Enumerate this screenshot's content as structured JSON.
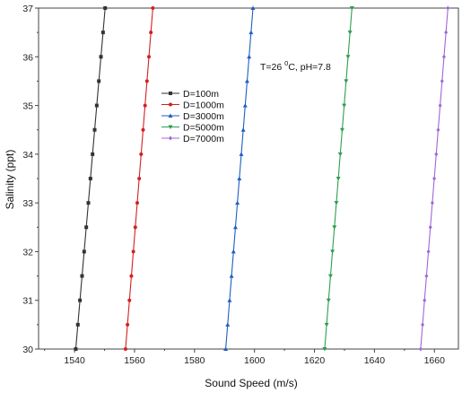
{
  "chart_data": {
    "type": "line",
    "title": "",
    "xlabel": "Sound Speed (m/s)",
    "ylabel": "Salinity (ppt)",
    "xlim": [
      1528,
      1668
    ],
    "ylim": [
      30,
      37
    ],
    "xticks": [
      "1540",
      "1560",
      "1580",
      "1600",
      "1620",
      "1640",
      "1660"
    ],
    "yticks": [
      "30",
      "31",
      "32",
      "33",
      "34",
      "35",
      "36",
      "37"
    ],
    "annotation": {
      "prefix": "T=26 ",
      "superscript": "0",
      "suffix": "C, pH=7.8"
    },
    "legend_position": "upper-left-center",
    "grid": false,
    "series": [
      {
        "name": "D=100m",
        "color": "#333333",
        "marker": "square",
        "points": [
          [
            1540.4,
            30.0
          ],
          [
            1541.1,
            30.5
          ],
          [
            1541.8,
            31.0
          ],
          [
            1542.5,
            31.5
          ],
          [
            1543.2,
            32.0
          ],
          [
            1543.9,
            32.5
          ],
          [
            1544.6,
            33.0
          ],
          [
            1545.3,
            33.5
          ],
          [
            1546.0,
            34.0
          ],
          [
            1546.7,
            34.5
          ],
          [
            1547.4,
            35.0
          ],
          [
            1548.1,
            35.5
          ],
          [
            1548.8,
            36.0
          ],
          [
            1549.5,
            36.5
          ],
          [
            1550.2,
            37.0
          ]
        ]
      },
      {
        "name": "D=1000m",
        "color": "#d42020",
        "marker": "circle",
        "points": [
          [
            1557.0,
            30.0
          ],
          [
            1557.65,
            30.5
          ],
          [
            1558.3,
            31.0
          ],
          [
            1558.95,
            31.5
          ],
          [
            1559.6,
            32.0
          ],
          [
            1560.25,
            32.5
          ],
          [
            1560.9,
            33.0
          ],
          [
            1561.55,
            33.5
          ],
          [
            1562.2,
            34.0
          ],
          [
            1562.85,
            34.5
          ],
          [
            1563.5,
            35.0
          ],
          [
            1564.15,
            35.5
          ],
          [
            1564.8,
            36.0
          ],
          [
            1565.45,
            36.5
          ],
          [
            1566.1,
            37.0
          ]
        ]
      },
      {
        "name": "D=3000m",
        "color": "#1f5fc0",
        "marker": "triangle-up",
        "points": [
          [
            1590.4,
            30.0
          ],
          [
            1591.05,
            30.5
          ],
          [
            1591.7,
            31.0
          ],
          [
            1592.35,
            31.5
          ],
          [
            1593.0,
            32.0
          ],
          [
            1593.65,
            32.5
          ],
          [
            1594.3,
            33.0
          ],
          [
            1594.95,
            33.5
          ],
          [
            1595.6,
            34.0
          ],
          [
            1596.25,
            34.5
          ],
          [
            1596.9,
            35.0
          ],
          [
            1597.55,
            35.5
          ],
          [
            1598.2,
            36.0
          ],
          [
            1598.85,
            36.5
          ],
          [
            1599.5,
            37.0
          ]
        ]
      },
      {
        "name": "D=5000m",
        "color": "#2e9e50",
        "marker": "triangle-down",
        "points": [
          [
            1623.4,
            30.0
          ],
          [
            1624.05,
            30.5
          ],
          [
            1624.7,
            31.0
          ],
          [
            1625.35,
            31.5
          ],
          [
            1626.0,
            32.0
          ],
          [
            1626.65,
            32.5
          ],
          [
            1627.3,
            33.0
          ],
          [
            1627.95,
            33.5
          ],
          [
            1628.6,
            34.0
          ],
          [
            1629.25,
            34.5
          ],
          [
            1629.9,
            35.0
          ],
          [
            1630.55,
            35.5
          ],
          [
            1631.2,
            36.0
          ],
          [
            1631.85,
            36.5
          ],
          [
            1632.5,
            37.0
          ]
        ]
      },
      {
        "name": "D=7000m",
        "color": "#a066d8",
        "marker": "diamond",
        "points": [
          [
            1655.4,
            30.0
          ],
          [
            1656.05,
            30.5
          ],
          [
            1656.7,
            31.0
          ],
          [
            1657.35,
            31.5
          ],
          [
            1658.0,
            32.0
          ],
          [
            1658.65,
            32.5
          ],
          [
            1659.3,
            33.0
          ],
          [
            1659.95,
            33.5
          ],
          [
            1660.6,
            34.0
          ],
          [
            1661.25,
            34.5
          ],
          [
            1661.9,
            35.0
          ],
          [
            1662.55,
            35.5
          ],
          [
            1663.2,
            36.0
          ],
          [
            1663.85,
            36.5
          ],
          [
            1664.5,
            37.0
          ]
        ]
      }
    ]
  }
}
